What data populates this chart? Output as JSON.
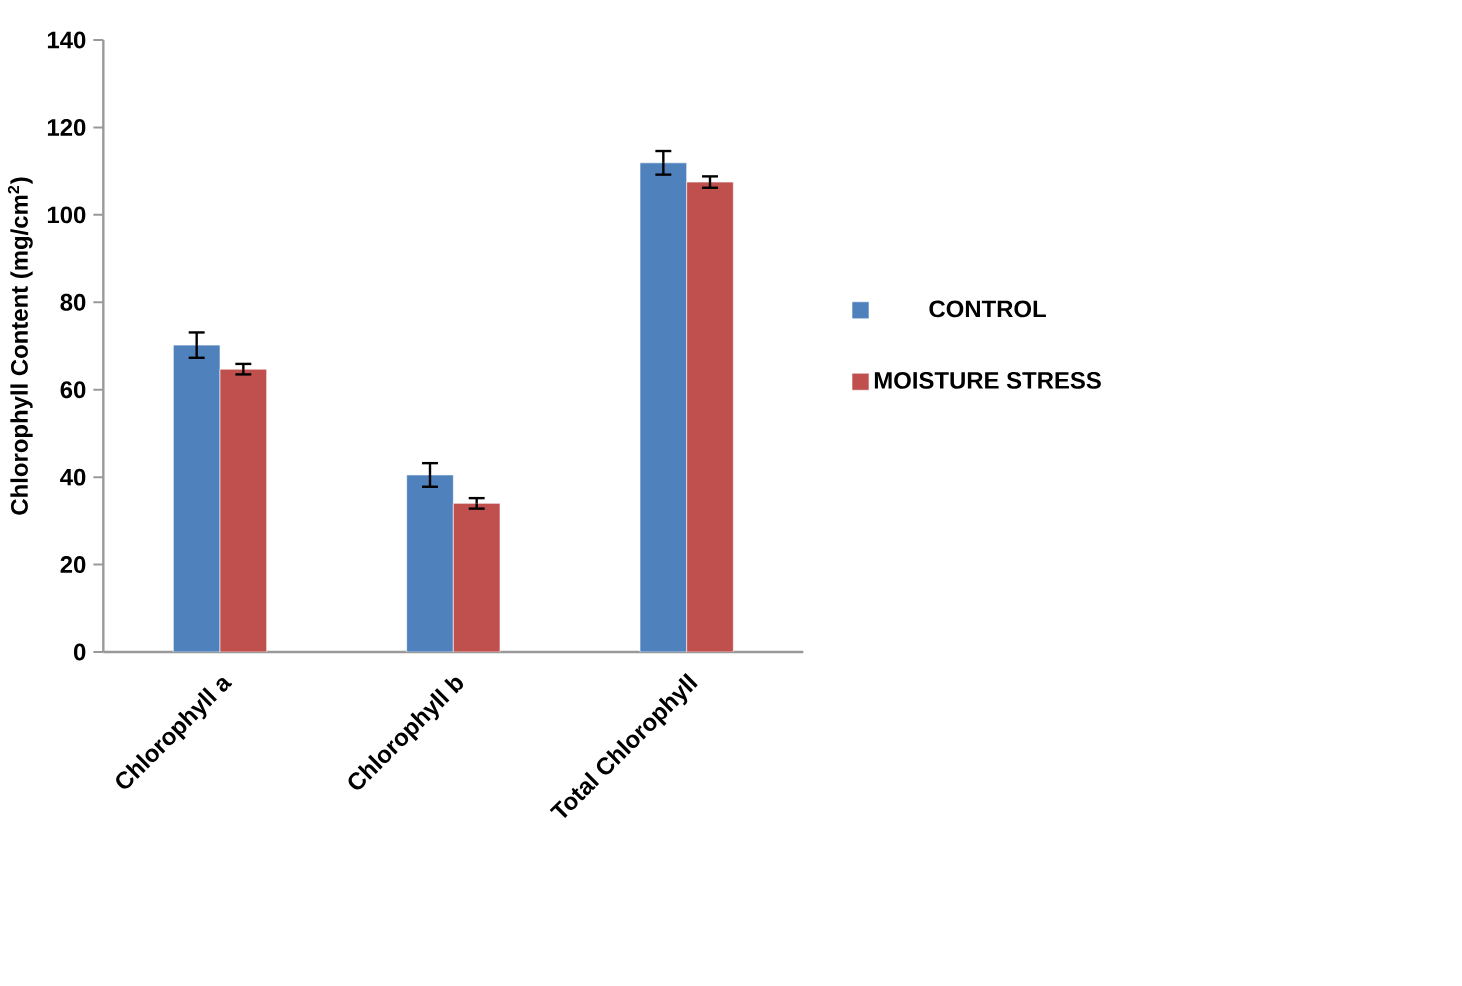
{
  "chart_data": {
    "type": "bar",
    "ylabel": "Chlorophyll Content (mg/cm$^{2}$)",
    "categories": [
      "Chlorophyll a",
      "Chlorophyll b",
      "Total Chlorophyll"
    ],
    "series": [
      {
        "name": "CONTROL",
        "color": "#4f81bd",
        "values": [
          70.2,
          40.5,
          111.9
        ],
        "errors": [
          2.9,
          2.7,
          2.7
        ]
      },
      {
        "name": "MOISTURE STRESS",
        "color": "#c0504d",
        "values": [
          64.7,
          34.0,
          107.5
        ],
        "errors": [
          1.2,
          1.2,
          1.3
        ]
      }
    ],
    "ylim": [
      0,
      140
    ],
    "yticks": [
      0,
      20,
      40,
      60,
      80,
      100,
      120,
      140
    ],
    "legend": "right"
  }
}
